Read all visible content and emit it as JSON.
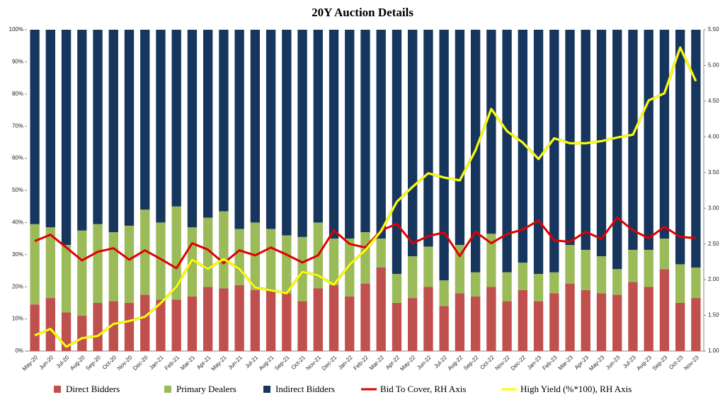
{
  "chart_data": {
    "type": "bar",
    "title": "20Y Auction Details",
    "stacked": true,
    "categories": [
      "May-20",
      "Jun-20",
      "Jul-20",
      "Aug-20",
      "Sep-20",
      "Oct-20",
      "Nov-20",
      "Dec-20",
      "Jan-21",
      "Feb-21",
      "Mar-21",
      "Apr-21",
      "May-21",
      "Jun-21",
      "Jul-21",
      "Aug-21",
      "Sep-21",
      "Oct-21",
      "Nov-21",
      "Dec-21",
      "Jan-22",
      "Feb-22",
      "Mar-22",
      "Apr-22",
      "May-22",
      "Jun-22",
      "Jul-22",
      "Aug-22",
      "Sep-22",
      "Oct-22",
      "Nov-22",
      "Dec-22",
      "Jan-23",
      "Feb-23",
      "Mar-23",
      "Apr-23",
      "May-23",
      "Jun-23",
      "Jul-23",
      "Aug-23",
      "Sep-23",
      "Oct-23",
      "Nov-23"
    ],
    "series": [
      {
        "name": "Direct Bidders",
        "type": "bar",
        "color": "#c0504d",
        "values": [
          14.5,
          16.5,
          12,
          11,
          15,
          15.5,
          15,
          17.5,
          16,
          16,
          17,
          20,
          19.5,
          20.5,
          19,
          19,
          18,
          15.5,
          19.5,
          20.5,
          17,
          21,
          26,
          15,
          16.5,
          20,
          14,
          18,
          17,
          20,
          15.5,
          19,
          15.5,
          18,
          21,
          19,
          18,
          17.5,
          21.5,
          20,
          25.5,
          15,
          16.5
        ]
      },
      {
        "name": "Primary Dealers",
        "type": "bar",
        "color": "#9bbb59",
        "values": [
          25,
          22,
          21,
          26.5,
          24.5,
          21.5,
          24,
          26.5,
          24,
          29,
          21.5,
          21.5,
          24,
          17.5,
          21,
          19,
          18,
          20,
          20.5,
          14.5,
          18,
          16,
          9,
          9,
          13,
          12.5,
          8,
          15,
          7.5,
          16.5,
          9,
          8.5,
          8.5,
          6.5,
          12,
          12.5,
          11.5,
          8,
          10,
          11.5,
          9.5,
          12,
          9.5
        ]
      },
      {
        "name": "Indirect Bidders",
        "type": "bar",
        "color": "#17365d",
        "values": [
          60.5,
          61.5,
          67,
          62.5,
          60.5,
          63,
          61,
          56,
          60,
          55,
          61.5,
          58.5,
          56.5,
          62,
          60,
          62,
          64,
          64.5,
          60,
          65,
          65,
          63,
          65,
          76,
          70.5,
          67.5,
          78,
          67,
          75.5,
          63.5,
          75.5,
          72.5,
          76,
          75.5,
          67,
          68.5,
          70.5,
          74.5,
          68.5,
          68.5,
          65,
          73,
          74
        ]
      },
      {
        "name": "Bid To Cover, RH Axis",
        "type": "line",
        "axis": "y2",
        "color": "#e00000",
        "values": [
          2.54,
          2.63,
          2.45,
          2.27,
          2.39,
          2.44,
          2.28,
          2.41,
          2.29,
          2.16,
          2.51,
          2.42,
          2.23,
          2.41,
          2.34,
          2.45,
          2.35,
          2.24,
          2.34,
          2.69,
          2.5,
          2.45,
          2.69,
          2.78,
          2.51,
          2.61,
          2.66,
          2.33,
          2.67,
          2.51,
          2.64,
          2.7,
          2.83,
          2.55,
          2.53,
          2.67,
          2.57,
          2.87,
          2.69,
          2.58,
          2.74,
          2.6,
          2.58
        ]
      },
      {
        "name": "High Yield (%*100), RH Axis",
        "type": "line",
        "axis": "y2",
        "color": "#ffff00",
        "values": [
          1.22,
          1.31,
          1.06,
          1.18,
          1.21,
          1.38,
          1.42,
          1.48,
          1.67,
          1.9,
          2.28,
          2.15,
          2.29,
          2.15,
          1.89,
          1.85,
          1.81,
          2.11,
          2.06,
          1.93,
          2.21,
          2.41,
          2.68,
          3.09,
          3.3,
          3.49,
          3.43,
          3.39,
          3.81,
          4.39,
          4.08,
          3.92,
          3.69,
          3.98,
          3.91,
          3.91,
          3.94,
          3.99,
          4.03,
          4.51,
          4.61,
          5.25,
          4.78
        ]
      }
    ],
    "ylim": [
      0,
      100
    ],
    "yticks": [
      {
        "value": 0,
        "label": "0%"
      },
      {
        "value": 10,
        "label": "10%"
      },
      {
        "value": 20,
        "label": "20%"
      },
      {
        "value": 30,
        "label": "30%"
      },
      {
        "value": 40,
        "label": "40%"
      },
      {
        "value": 50,
        "label": "50%"
      },
      {
        "value": 60,
        "label": "60%"
      },
      {
        "value": 70,
        "label": "70%"
      },
      {
        "value": 80,
        "label": "80%"
      },
      {
        "value": 90,
        "label": "90%"
      },
      {
        "value": 100,
        "label": "100%"
      }
    ],
    "y2lim": [
      1,
      5.5
    ],
    "y2ticks": [
      {
        "value": 1,
        "label": "1.00"
      },
      {
        "value": 1.5,
        "label": "1.50"
      },
      {
        "value": 2,
        "label": "2.00"
      },
      {
        "value": 2.5,
        "label": "2.50"
      },
      {
        "value": 3,
        "label": "3.00"
      },
      {
        "value": 3.5,
        "label": "3.50"
      },
      {
        "value": 4,
        "label": "4.00"
      },
      {
        "value": 4.5,
        "label": "4.50"
      },
      {
        "value": 5,
        "label": "5.00"
      },
      {
        "value": 5.5,
        "label": "5.50"
      }
    ],
    "legend": "bottom"
  }
}
